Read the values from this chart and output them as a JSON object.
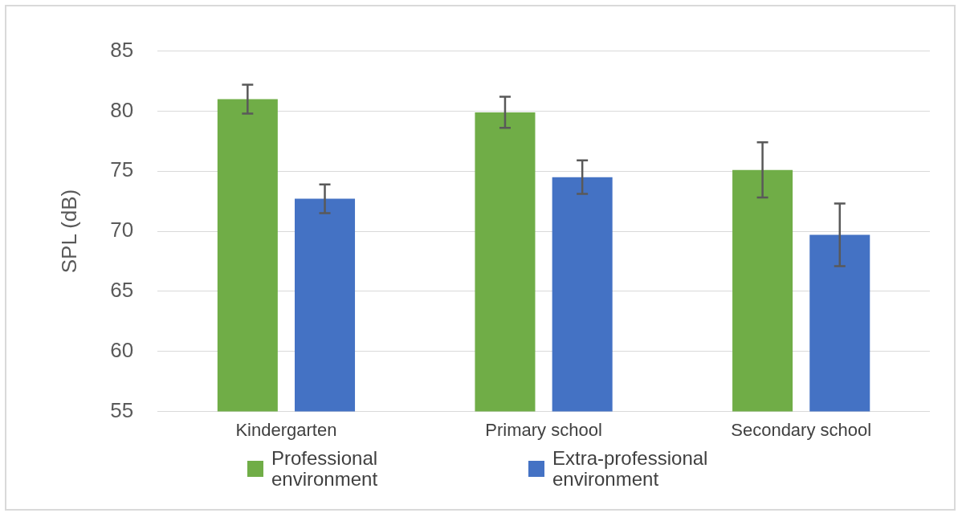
{
  "chart_data": {
    "type": "bar",
    "ylabel": "SPL (dB)",
    "categories": [
      "Kindergarten",
      "Primary school",
      "Secondary school"
    ],
    "series": [
      {
        "name": "Professional environment",
        "color": "#70ad47",
        "values": [
          81.0,
          79.9,
          75.1
        ],
        "errors": [
          1.2,
          1.3,
          2.3
        ]
      },
      {
        "name": "Extra-professional environment",
        "color": "#4472c4",
        "values": [
          72.7,
          74.5,
          69.7
        ],
        "errors": [
          1.2,
          1.4,
          2.6
        ]
      }
    ],
    "ylim": [
      55,
      85
    ],
    "yticks": [
      55,
      60,
      65,
      70,
      75,
      80,
      85
    ],
    "grid": "y",
    "legend": "bottom"
  }
}
